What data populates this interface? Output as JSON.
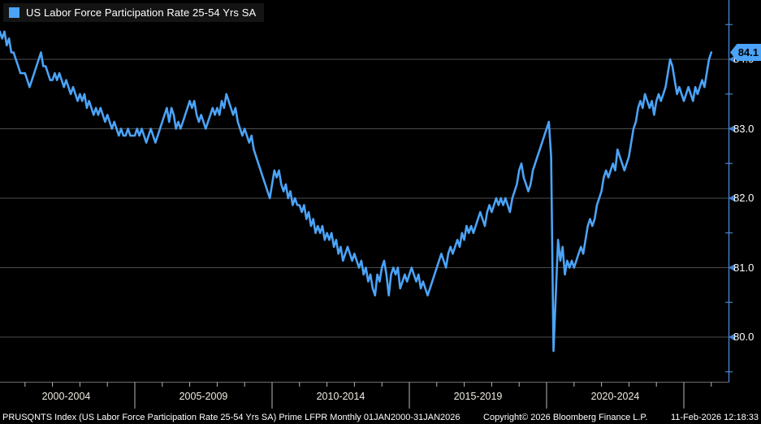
{
  "legend": {
    "label": "US Labor Force Participation Rate 25-54 Yrs SA"
  },
  "colors": {
    "background": "#000000",
    "line": "#4ba3f7",
    "axis": "#4583cf",
    "grid": "#4d4d4d",
    "baseline": "#6e6e6e",
    "tick": "#b8b8b8",
    "badge_bg": "#4ba3f7",
    "badge_text": "#000000",
    "y_label": "#ffffff",
    "x_label": "#efece2",
    "legend_bg": "#141414"
  },
  "y_axis": {
    "last_value_label": "84.1",
    "ticks": [
      {
        "label": "84.0",
        "value": 84.0
      },
      {
        "label": "83.0",
        "value": 83.0
      },
      {
        "label": "82.0",
        "value": 82.0
      },
      {
        "label": "81.0",
        "value": 81.0
      },
      {
        "label": "80.0",
        "value": 80.0
      }
    ],
    "minor_ticks": [
      84.5,
      83.5,
      82.5,
      81.5,
      80.5,
      79.5
    ]
  },
  "x_axis": {
    "labels": [
      "2000-2004",
      "2005-2009",
      "2010-2014",
      "2015-2019",
      "2020-2024"
    ]
  },
  "status_bar": {
    "left": "PRUSQNTS Index (US Labor Force Participation Rate 25-54 Yrs SA) Prime LFPR Monthly 01JAN2000-31JAN2026",
    "center": "Copyright© 2026 Bloomberg Finance L.P.",
    "right": "11-Feb-2026 12:18:33"
  },
  "chart_data": {
    "type": "line",
    "title": "US Labor Force Participation Rate 25-54 Yrs SA",
    "ticker": "PRUSQNTS Index",
    "frequency": "monthly",
    "x_start": "2000-01",
    "x_end": "2026-01",
    "x_tick_labels": [
      "2000-2004",
      "2005-2009",
      "2010-2014",
      "2015-2019",
      "2020-2024"
    ],
    "y_ticks": [
      80.0,
      81.0,
      82.0,
      83.0,
      84.0
    ],
    "ylim": [
      79.2,
      84.6
    ],
    "last_value": 84.1,
    "legend_position": "top-left",
    "grid": "horizontal",
    "values": [
      84.3,
      84.4,
      84.3,
      84.4,
      84.2,
      84.3,
      84.1,
      84.1,
      84.0,
      83.9,
      83.8,
      83.8,
      83.8,
      83.7,
      83.6,
      83.7,
      83.8,
      83.9,
      84.0,
      84.1,
      83.9,
      83.9,
      83.8,
      83.7,
      83.7,
      83.8,
      83.7,
      83.8,
      83.7,
      83.6,
      83.7,
      83.6,
      83.5,
      83.6,
      83.5,
      83.4,
      83.5,
      83.4,
      83.5,
      83.3,
      83.4,
      83.3,
      83.2,
      83.3,
      83.2,
      83.3,
      83.2,
      83.1,
      83.2,
      83.1,
      83.0,
      83.1,
      83.0,
      82.9,
      83.0,
      82.9,
      82.9,
      83.0,
      82.9,
      82.9,
      82.9,
      83.0,
      82.9,
      83.0,
      82.9,
      82.8,
      82.9,
      83.0,
      82.9,
      82.8,
      82.9,
      83.0,
      83.1,
      83.2,
      83.3,
      83.1,
      83.3,
      83.2,
      83.0,
      83.1,
      83.0,
      83.1,
      83.2,
      83.3,
      83.4,
      83.3,
      83.4,
      83.2,
      83.1,
      83.2,
      83.1,
      83.0,
      83.1,
      83.2,
      83.3,
      83.2,
      83.3,
      83.2,
      83.4,
      83.3,
      83.5,
      83.4,
      83.3,
      83.2,
      83.3,
      83.1,
      83.0,
      82.9,
      83.0,
      82.9,
      82.8,
      82.9,
      82.7,
      82.6,
      82.5,
      82.4,
      82.3,
      82.2,
      82.1,
      82.0,
      82.2,
      82.4,
      82.3,
      82.4,
      82.2,
      82.1,
      82.2,
      82.0,
      82.1,
      81.9,
      82.0,
      81.9,
      81.9,
      81.8,
      81.9,
      81.7,
      81.8,
      81.6,
      81.7,
      81.5,
      81.6,
      81.5,
      81.6,
      81.4,
      81.5,
      81.4,
      81.5,
      81.3,
      81.4,
      81.2,
      81.3,
      81.1,
      81.2,
      81.3,
      81.2,
      81.1,
      81.2,
      81.1,
      81.0,
      81.1,
      80.9,
      81.0,
      80.8,
      80.9,
      80.7,
      80.6,
      80.9,
      80.8,
      81.0,
      81.1,
      80.9,
      80.6,
      80.9,
      81.0,
      80.9,
      81.0,
      80.7,
      80.8,
      80.9,
      80.8,
      80.9,
      81.0,
      80.9,
      80.8,
      80.9,
      80.7,
      80.8,
      80.7,
      80.6,
      80.7,
      80.8,
      80.9,
      81.0,
      81.1,
      81.2,
      81.1,
      81.0,
      81.2,
      81.3,
      81.2,
      81.3,
      81.4,
      81.3,
      81.5,
      81.4,
      81.6,
      81.5,
      81.6,
      81.5,
      81.6,
      81.7,
      81.8,
      81.7,
      81.6,
      81.8,
      81.9,
      81.8,
      81.9,
      82.0,
      81.9,
      82.0,
      81.9,
      82.0,
      81.9,
      81.8,
      82.0,
      82.1,
      82.2,
      82.4,
      82.5,
      82.3,
      82.2,
      82.1,
      82.2,
      82.4,
      82.5,
      82.6,
      82.7,
      82.8,
      82.9,
      83.0,
      83.1,
      82.6,
      79.8,
      80.6,
      81.4,
      81.1,
      81.3,
      80.9,
      81.1,
      81.0,
      81.1,
      81.0,
      81.1,
      81.2,
      81.3,
      81.2,
      81.4,
      81.6,
      81.7,
      81.6,
      81.7,
      81.9,
      82.0,
      82.1,
      82.3,
      82.4,
      82.3,
      82.4,
      82.5,
      82.4,
      82.7,
      82.6,
      82.5,
      82.4,
      82.5,
      82.6,
      82.8,
      83.0,
      83.1,
      83.3,
      83.4,
      83.3,
      83.5,
      83.4,
      83.3,
      83.4,
      83.2,
      83.4,
      83.5,
      83.4,
      83.5,
      83.6,
      83.8,
      84.0,
      83.9,
      83.7,
      83.5,
      83.6,
      83.5,
      83.4,
      83.5,
      83.6,
      83.5,
      83.4,
      83.6,
      83.5,
      83.6,
      83.7,
      83.6,
      83.8,
      84.0,
      84.1
    ]
  }
}
